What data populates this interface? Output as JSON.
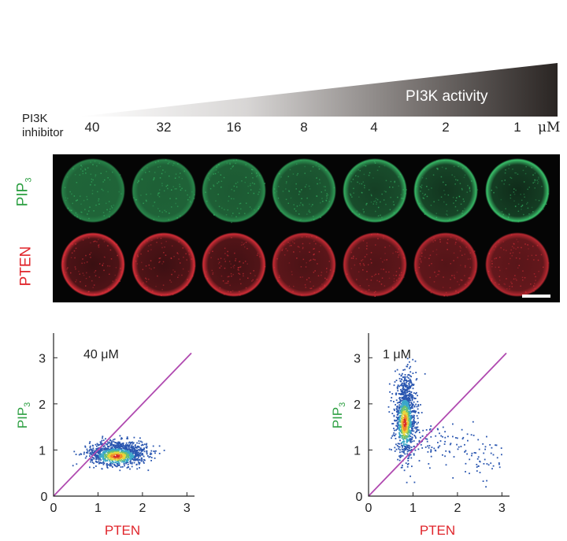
{
  "header": {
    "activity_label": "PI3K activity",
    "inhibitor_label_line1": "PI3K",
    "inhibitor_label_line2": "inhibitor",
    "concentrations": [
      "40",
      "32",
      "16",
      "8",
      "4",
      "2",
      "1"
    ],
    "unit": "μM"
  },
  "micrograph": {
    "row_labels": [
      {
        "name": "PIP3",
        "base": "PIP",
        "sub": "3",
        "color": "#2ea043"
      },
      {
        "name": "PTEN",
        "base": "PTEN",
        "sub": "",
        "color": "#e0252b"
      }
    ],
    "pip3_rim_intensity": [
      0.15,
      0.2,
      0.3,
      0.45,
      0.7,
      0.85,
      1.0
    ],
    "pten_rim_intensity": [
      0.9,
      0.85,
      0.8,
      0.65,
      0.6,
      0.55,
      0.5
    ],
    "green": "#39c06a",
    "red": "#e0303a"
  },
  "chart_data": [
    {
      "type": "scatter",
      "annotation": "40 μM",
      "xlabel": "PTEN",
      "ylabel_base": "PIP",
      "ylabel_sub": "3",
      "xlim": [
        0,
        3.1
      ],
      "ylim": [
        0,
        3.5
      ],
      "x_ticks": [
        "0",
        "1",
        "2",
        "3"
      ],
      "y_ticks": [
        "1",
        "2",
        "3"
      ],
      "diagonal": "y = x",
      "cluster": {
        "x_center": 1.45,
        "x_spread": 0.32,
        "y_center": 0.95,
        "y_spread": 0.13,
        "hot_x": 1.4,
        "hot_y": 0.88,
        "n": 1100
      }
    },
    {
      "type": "scatter",
      "annotation": "1 μM",
      "xlabel": "PTEN",
      "ylabel_base": "PIP",
      "ylabel_sub": "3",
      "xlim": [
        0,
        3.1
      ],
      "ylim": [
        0,
        3.5
      ],
      "x_ticks": [
        "0",
        "1",
        "2",
        "3"
      ],
      "y_ticks": [
        "1",
        "2",
        "3"
      ],
      "diagonal": "y = x",
      "cluster": {
        "x_center": 0.82,
        "x_spread": 0.12,
        "y_center": 1.75,
        "y_spread": 0.42,
        "hot_x": 0.8,
        "hot_y": 1.6,
        "n": 1100
      },
      "tail": {
        "x_from": 1.0,
        "x_to": 3.0,
        "y_from": 1.3,
        "y_to": 0.8,
        "n": 140
      }
    }
  ],
  "colors": {
    "diagonal": "#b04ab0",
    "pten_label": "#e0252b",
    "pip3_label": "#2ea043",
    "wedge_dark": "#2a2523"
  }
}
